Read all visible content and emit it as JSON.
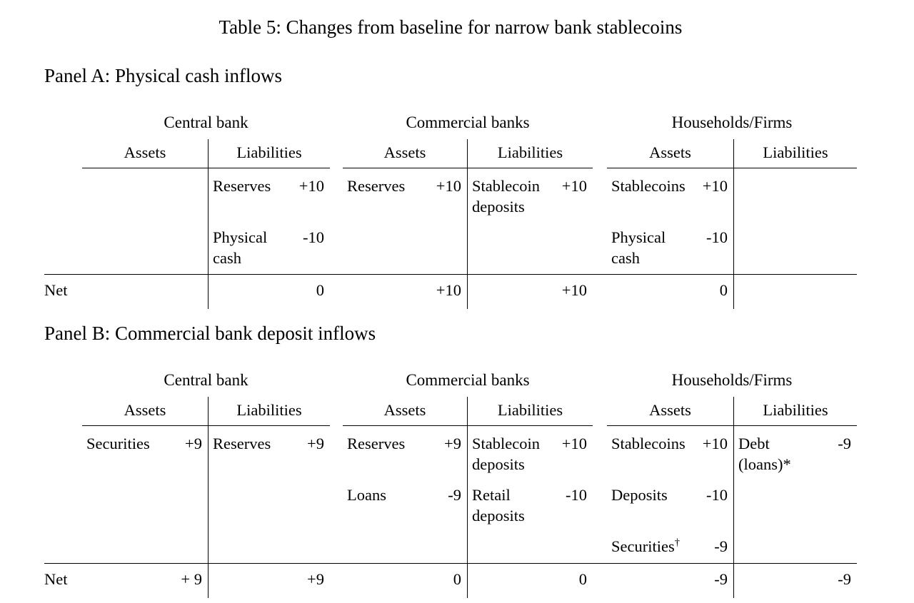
{
  "page": {
    "background": "#ffffff",
    "text_color": "#000000",
    "rule_color": "#000000"
  },
  "title": "Table 5: Changes from baseline for narrow bank stablecoins",
  "panels": [
    {
      "heading": "Panel A: Physical cash inflows",
      "groups": [
        {
          "title": "Central bank",
          "columns": [
            "Assets",
            "Liabilities"
          ]
        },
        {
          "title": "Commercial banks",
          "columns": [
            "Assets",
            "Liabilities"
          ]
        },
        {
          "title": "Households/Firms",
          "columns": [
            "Assets",
            "Liabilities"
          ]
        }
      ],
      "rows": [
        {
          "cells": [
            null,
            {
              "lines": [
                "Reserves"
              ],
              "value": "+10"
            },
            {
              "lines": [
                "Reserves"
              ],
              "value": "+10"
            },
            {
              "lines": [
                "Stablecoin",
                "deposits"
              ],
              "value": "+10"
            },
            {
              "lines": [
                "Stablecoins"
              ],
              "value": "+10"
            },
            null
          ]
        },
        {
          "cells": [
            null,
            {
              "lines": [
                "Physical",
                "cash"
              ],
              "value": "-10"
            },
            null,
            null,
            {
              "lines": [
                "Physical",
                "cash"
              ],
              "value": "-10"
            },
            null
          ]
        }
      ],
      "net": {
        "label": "Net",
        "values": [
          "",
          "0",
          "+10",
          "+10",
          "0",
          ""
        ]
      }
    },
    {
      "heading": "Panel B: Commercial bank deposit inflows",
      "groups": [
        {
          "title": "Central bank",
          "columns": [
            "Assets",
            "Liabilities"
          ]
        },
        {
          "title": "Commercial banks",
          "columns": [
            "Assets",
            "Liabilities"
          ]
        },
        {
          "title": "Households/Firms",
          "columns": [
            "Assets",
            "Liabilities"
          ]
        }
      ],
      "rows": [
        {
          "cells": [
            {
              "lines": [
                "Securities"
              ],
              "value": "+9"
            },
            {
              "lines": [
                "Reserves"
              ],
              "value": "+9"
            },
            {
              "lines": [
                "Reserves"
              ],
              "value": "+9"
            },
            {
              "lines": [
                "Stablecoin",
                "deposits"
              ],
              "value": "+10"
            },
            {
              "lines": [
                "Stablecoins"
              ],
              "value": "+10"
            },
            {
              "lines": [
                "Debt",
                "(loans)*"
              ],
              "value": "-9"
            }
          ]
        },
        {
          "cells": [
            null,
            null,
            {
              "lines": [
                "Loans"
              ],
              "value": "-9"
            },
            {
              "lines": [
                "Retail",
                "deposits"
              ],
              "value": "-10"
            },
            {
              "lines": [
                "Deposits"
              ],
              "value": "-10"
            },
            null
          ]
        },
        {
          "cells": [
            null,
            null,
            null,
            null,
            {
              "lines": [
                "Securities"
              ],
              "sup": "†",
              "value": "-9"
            },
            null
          ]
        }
      ],
      "net": {
        "label": "Net",
        "values": [
          "+ 9",
          "+9",
          "0",
          "0",
          "-9",
          "-9"
        ]
      }
    }
  ]
}
